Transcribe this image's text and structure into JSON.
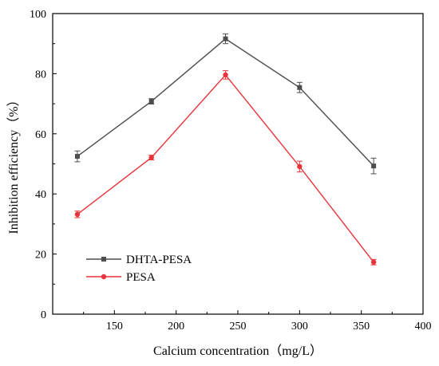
{
  "chart_data": {
    "type": "line",
    "title": "",
    "xlabel": "Calcium concentration（mg/L）",
    "ylabel": "Inhibition efficiency（%）",
    "xlim": [
      100,
      400
    ],
    "ylim": [
      0,
      100
    ],
    "xticks": [
      150,
      200,
      250,
      300,
      350,
      400
    ],
    "yticks": [
      0,
      20,
      40,
      60,
      80,
      100
    ],
    "grid": false,
    "legend_position": "bottom-left",
    "x": [
      120,
      180,
      240,
      300,
      360
    ],
    "series": [
      {
        "name": "DHTA-PESA",
        "color": "#4d4d4d",
        "marker": "square",
        "values": [
          52.5,
          70.8,
          91.6,
          75.4,
          49.3
        ],
        "errors": [
          1.8,
          0.9,
          1.6,
          1.7,
          2.6
        ]
      },
      {
        "name": "PESA",
        "color": "#e8333a",
        "marker": "circle",
        "values": [
          33.2,
          52.1,
          79.6,
          49.1,
          17.3
        ],
        "errors": [
          1.1,
          0.8,
          1.4,
          1.8,
          0.9
        ]
      }
    ]
  }
}
